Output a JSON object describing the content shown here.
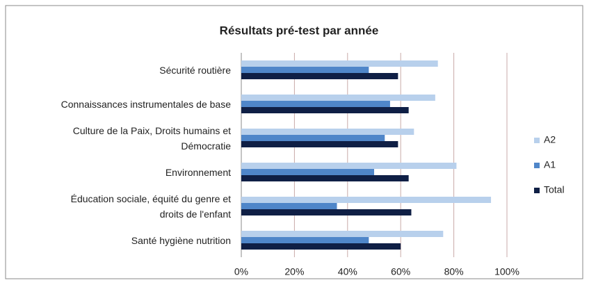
{
  "chart_data": {
    "type": "hbar",
    "title": "Résultats pré-test par année",
    "categories": [
      "Sécurité routière",
      "Connaissances instrumentales de base",
      "Culture de la Paix, Droits humains et\nDémocratie",
      "Environnement",
      "Éducation sociale, équité du genre et\ndroits de l'enfant",
      "Santé hygiène nutrition"
    ],
    "series": [
      {
        "name": "A2",
        "color": "#b8d0ec",
        "values": [
          74,
          73,
          65,
          81,
          94,
          76
        ]
      },
      {
        "name": "A1",
        "color": "#4f86c9",
        "values": [
          48,
          56,
          54,
          50,
          36,
          48
        ]
      },
      {
        "name": "Total",
        "color": "#0f1f45",
        "values": [
          59,
          63,
          59,
          63,
          64,
          60
        ]
      }
    ],
    "xlim": [
      0,
      100
    ],
    "xticks": [
      {
        "value": 0,
        "label": "0%"
      },
      {
        "value": 20,
        "label": "20%"
      },
      {
        "value": 40,
        "label": "40%"
      },
      {
        "value": 60,
        "label": "60%"
      },
      {
        "value": 80,
        "label": "80%"
      },
      {
        "value": 100,
        "label": "100%"
      }
    ],
    "grid": true,
    "legend": "right"
  }
}
